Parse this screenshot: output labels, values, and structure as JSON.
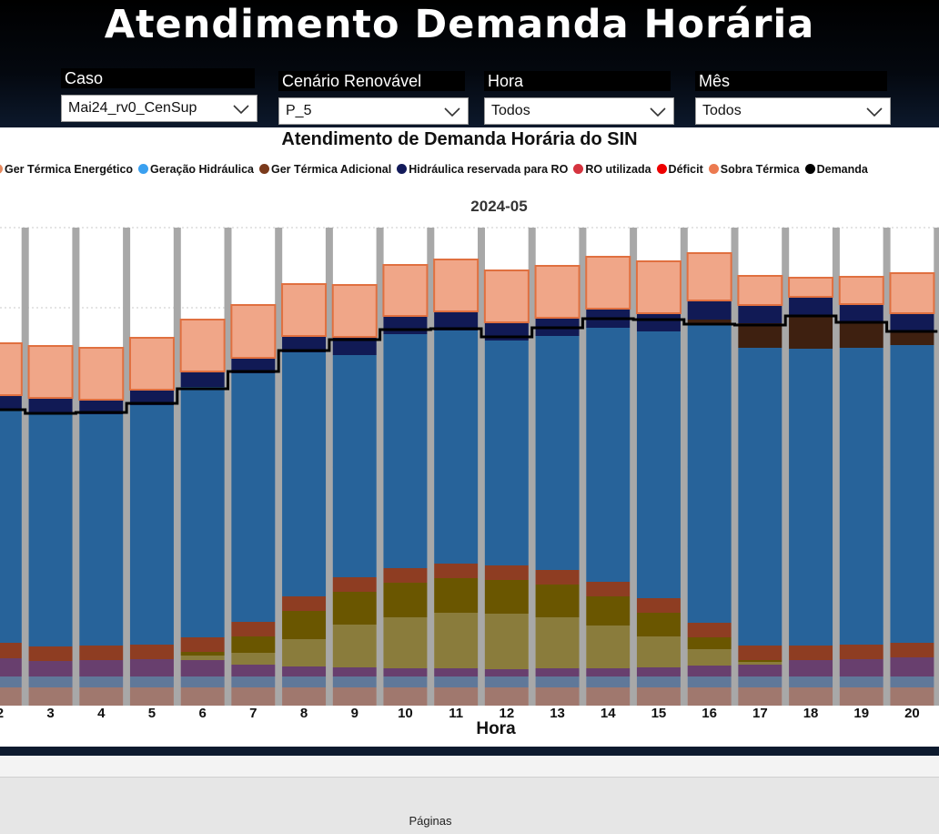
{
  "header": {
    "title": "Atendimento Demanda Horária"
  },
  "filters": [
    {
      "label": "Caso",
      "value": "Mai24_rv0_CenSup"
    },
    {
      "label": "Cenário Renovável",
      "value": "P_5"
    },
    {
      "label": "Hora",
      "value": "Todos"
    },
    {
      "label": "Mês",
      "value": "Todos"
    }
  ],
  "footer": {
    "pages_label": "Páginas"
  },
  "icons": {
    "dropdown": "chevron-down-icon"
  },
  "chart_data": {
    "type": "bar",
    "title": "Atendimento de Demanda Horária do SIN",
    "facet": "2024-05",
    "xlabel": "Hora",
    "ylabel": "",
    "grid": true,
    "legend_position": "top",
    "categories": [
      "2",
      "3",
      "4",
      "5",
      "6",
      "7",
      "8",
      "9",
      "10",
      "11",
      "12",
      "13",
      "14",
      "15",
      "16",
      "17",
      "18",
      "19",
      "20"
    ],
    "ylim": [
      0,
      525
    ],
    "legend": [
      {
        "name": "Ger Térmica Energético",
        "color": "#e58a60"
      },
      {
        "name": "Geração Hidráulica",
        "color": "#3aa0f0"
      },
      {
        "name": "Ger Térmica Adicional",
        "color": "#7a3a1c"
      },
      {
        "name": "Hidráulica reservada para RO",
        "color": "#121a5a"
      },
      {
        "name": "RO utilizada",
        "color": "#d5343f"
      },
      {
        "name": "Déficit",
        "color": "#ee0000"
      },
      {
        "name": "Sobra Térmica",
        "color": "#ec7a50"
      },
      {
        "name": "Demanda",
        "color": "#000000"
      }
    ],
    "series": [
      {
        "color": "#a0786e",
        "values": [
          20,
          20,
          20,
          20,
          20,
          20,
          20,
          20,
          20,
          20,
          20,
          20,
          20,
          20,
          20,
          20,
          20,
          20,
          20
        ]
      },
      {
        "color": "#607899",
        "values": [
          12,
          12,
          12,
          12,
          12,
          12,
          12,
          12,
          12,
          12,
          12,
          12,
          12,
          12,
          12,
          12,
          12,
          12,
          12
        ]
      },
      {
        "color": "#683f6e",
        "values": [
          20,
          17,
          18,
          19,
          18,
          13,
          11,
          10,
          9,
          9,
          8,
          9,
          9,
          10,
          12,
          13,
          18,
          19,
          21
        ]
      },
      {
        "color": "#8a7c3c",
        "values": [
          0,
          0,
          0,
          0,
          5,
          13,
          30,
          47,
          56,
          61,
          61,
          56,
          47,
          34,
          18,
          3,
          0,
          0,
          0
        ]
      },
      {
        "color": "#6a5600",
        "values": [
          0,
          0,
          0,
          0,
          4,
          18,
          31,
          36,
          38,
          38,
          37,
          36,
          32,
          26,
          13,
          2,
          0,
          0,
          0
        ]
      },
      {
        "color": "#8e3d22",
        "values": [
          17,
          16,
          16,
          16,
          16,
          16,
          16,
          16,
          16,
          16,
          16,
          16,
          16,
          16,
          16,
          16,
          16,
          16,
          16
        ]
      },
      {
        "color": "#27639a",
        "values": [
          256,
          256,
          254,
          263,
          275,
          273,
          268,
          244,
          257,
          256,
          247,
          257,
          279,
          293,
          327,
          327,
          326,
          326,
          327
        ]
      },
      {
        "color": "#3e2010",
        "values": [
          0,
          0,
          0,
          0,
          0,
          0,
          0,
          0,
          0,
          0,
          0,
          0,
          0,
          0,
          6,
          27,
          37,
          28,
          15
        ]
      },
      {
        "color": "#111a55",
        "values": [
          16,
          17,
          16,
          17,
          17,
          17,
          18,
          20,
          20,
          21,
          20,
          20,
          21,
          20,
          21,
          20,
          20,
          20,
          20
        ]
      },
      {
        "color": "#f0a688",
        "values": [
          57,
          57,
          57,
          57,
          57,
          58,
          57,
          57,
          56,
          57,
          57,
          57,
          57,
          57,
          52,
          32,
          21,
          30,
          44
        ]
      }
    ],
    "demanda": [
      325,
      321,
      322,
      332,
      348,
      367,
      390,
      402,
      413,
      414,
      405,
      415,
      425,
      424,
      419,
      418,
      428,
      421,
      411
    ]
  }
}
